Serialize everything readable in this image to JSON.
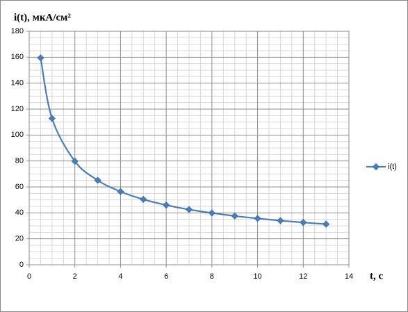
{
  "chart_data": {
    "type": "line",
    "ylabel": "i(t), мкА/см²",
    "xlabel": "t, с",
    "series": [
      {
        "name": "i(t)",
        "color": "#4a7ebb",
        "x": [
          0.5,
          1,
          2,
          3,
          4,
          5,
          6,
          7,
          8,
          9,
          10,
          11,
          12,
          13
        ],
        "values": [
          159.5,
          112.8,
          79.8,
          65.1,
          56.4,
          50.4,
          46.0,
          42.6,
          39.9,
          37.6,
          35.7,
          34.0,
          32.6,
          31.3
        ]
      }
    ],
    "xlim": [
      0,
      14
    ],
    "xticks": [
      0,
      2,
      4,
      6,
      8,
      10,
      12,
      14
    ],
    "ylim": [
      0,
      180
    ],
    "yticks": [
      0,
      20,
      40,
      60,
      80,
      100,
      120,
      140,
      160,
      180
    ],
    "grid": true,
    "minor_grid": true,
    "legend": "right"
  }
}
